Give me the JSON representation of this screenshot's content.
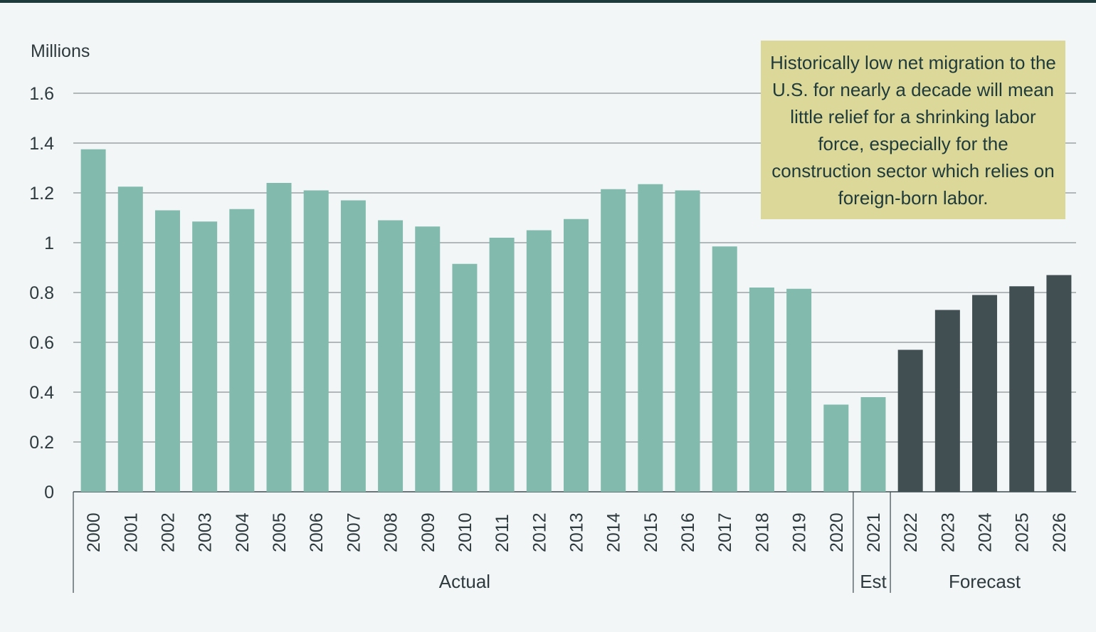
{
  "chart_data": {
    "type": "bar",
    "ylabel": "Millions",
    "ylim": [
      0,
      1.6
    ],
    "yticks": [
      0,
      0.2,
      0.4,
      0.6,
      0.8,
      1,
      1.2,
      1.4,
      1.6
    ],
    "ytick_labels": [
      "0",
      "0.2",
      "0.4",
      "0.6",
      "0.8",
      "1",
      "1.2",
      "1.4",
      "1.6"
    ],
    "grid": true,
    "categories": [
      "2000",
      "2001",
      "2002",
      "2003",
      "2004",
      "2005",
      "2006",
      "2007",
      "2008",
      "2009",
      "2010",
      "2011",
      "2012",
      "2013",
      "2014",
      "2015",
      "2016",
      "2017",
      "2018",
      "2019",
      "2020",
      "2021",
      "2022",
      "2023",
      "2024",
      "2025",
      "2026"
    ],
    "values": [
      1.375,
      1.225,
      1.13,
      1.085,
      1.135,
      1.24,
      1.21,
      1.17,
      1.09,
      1.065,
      0.915,
      1.02,
      1.05,
      1.095,
      1.215,
      1.235,
      1.21,
      0.985,
      0.82,
      0.815,
      0.35,
      0.38,
      0.57,
      0.73,
      0.79,
      0.825,
      0.87
    ],
    "groups": [
      {
        "label": "Actual",
        "start": 0,
        "end": 20,
        "color": "#82bbad"
      },
      {
        "label": "Est",
        "start": 21,
        "end": 21,
        "color": "#82bbad"
      },
      {
        "label": "Forecast",
        "start": 22,
        "end": 26,
        "color": "#414f53"
      }
    ],
    "annotation": "Historically low net migration to the U.S. for nearly a decade will mean little relief for a shrinking labor force, especially for the construction sector which relies on foreign-born labor."
  },
  "colors": {
    "background": "#f2f6f7",
    "top_rule": "#1f3a3a",
    "gridline": "#6e7a7d",
    "actual_bar": "#82bbad",
    "forecast_bar": "#414f53",
    "callout_bg": "#dcd899"
  }
}
